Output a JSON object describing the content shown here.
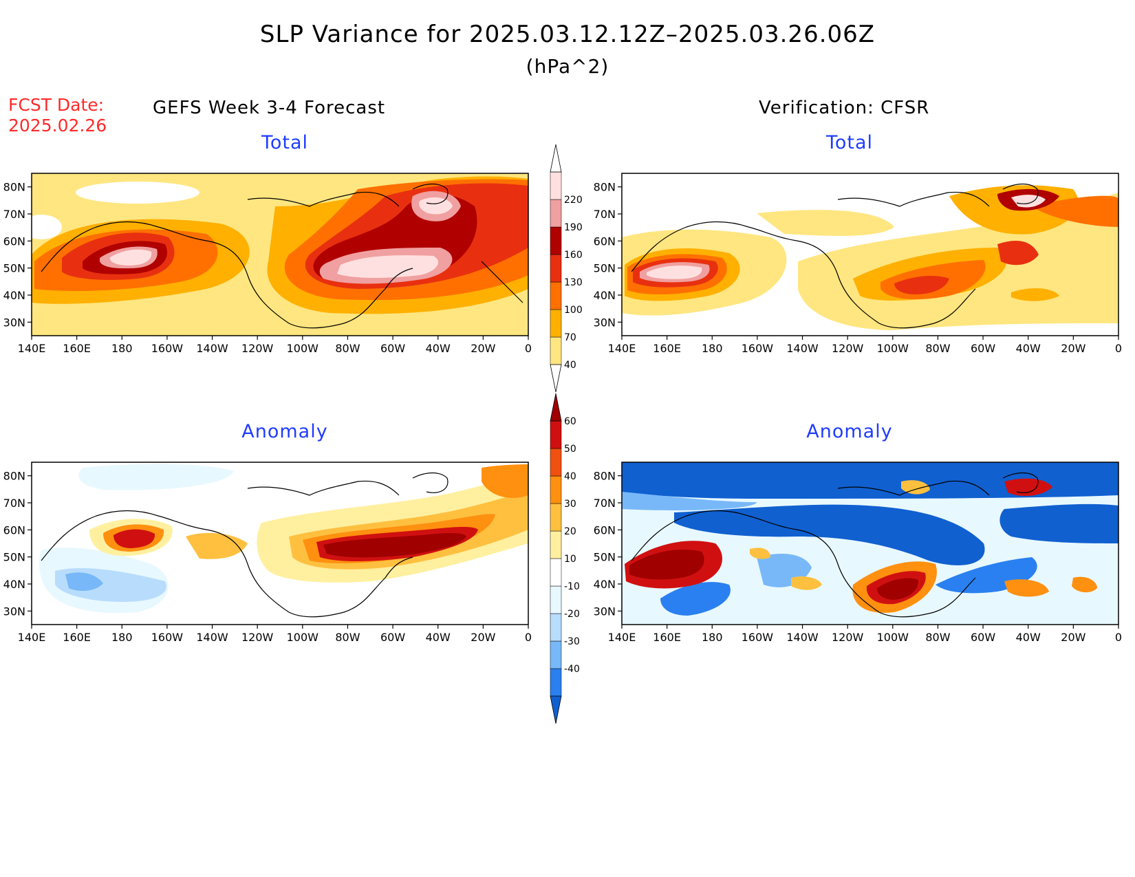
{
  "header": {
    "title": "SLP Variance for 2025.03.12.12Z–2025.03.26.06Z",
    "units": "(hPa^2)",
    "fcst_label": "FCST Date:",
    "fcst_date": "2025.02.26"
  },
  "columns": {
    "left_title": "GEFS Week 3-4 Forecast",
    "right_title": "Verification: CFSR"
  },
  "panels": {
    "top_left_title": "Total",
    "top_right_title": "Total",
    "bottom_left_title": "Anomaly",
    "bottom_right_title": "Anomaly"
  },
  "axes": {
    "lat_labels": [
      "30N",
      "40N",
      "50N",
      "60N",
      "70N",
      "80N"
    ],
    "lon_labels": [
      "140E",
      "160E",
      "180",
      "160W",
      "140W",
      "120W",
      "100W",
      "80W",
      "60W",
      "40W",
      "20W",
      "0"
    ]
  },
  "colorbars": {
    "total": {
      "labels": [
        "40",
        "70",
        "100",
        "130",
        "160",
        "190",
        "220"
      ],
      "colors": [
        "#ffe680",
        "#ffb000",
        "#ff7000",
        "#e83010",
        "#b00000",
        "#f0a0a0",
        "#ffe0e0"
      ]
    },
    "anomaly": {
      "labels": [
        "-40",
        "-30",
        "-20",
        "-10",
        "10",
        "20",
        "30",
        "40",
        "50",
        "60"
      ],
      "colors": [
        "#1060d0",
        "#2a80f0",
        "#78b8f8",
        "#b8dcfc",
        "#e8f8ff",
        "#ffffff",
        "#fff0a0",
        "#ffc040",
        "#ff9010",
        "#f05010",
        "#d01010",
        "#a00000"
      ]
    }
  }
}
